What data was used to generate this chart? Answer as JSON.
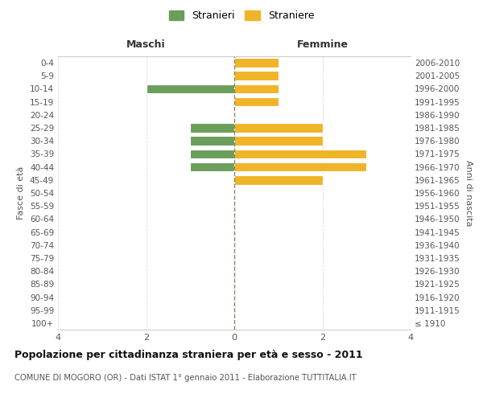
{
  "age_groups": [
    "100+",
    "95-99",
    "90-94",
    "85-89",
    "80-84",
    "75-79",
    "70-74",
    "65-69",
    "60-64",
    "55-59",
    "50-54",
    "45-49",
    "40-44",
    "35-39",
    "30-34",
    "25-29",
    "20-24",
    "15-19",
    "10-14",
    "5-9",
    "0-4"
  ],
  "birth_years": [
    "≤ 1910",
    "1911-1915",
    "1916-1920",
    "1921-1925",
    "1926-1930",
    "1931-1935",
    "1936-1940",
    "1941-1945",
    "1946-1950",
    "1951-1955",
    "1956-1960",
    "1961-1965",
    "1966-1970",
    "1971-1975",
    "1976-1980",
    "1981-1985",
    "1986-1990",
    "1991-1995",
    "1996-2000",
    "2001-2005",
    "2006-2010"
  ],
  "maschi": [
    0,
    0,
    0,
    0,
    0,
    0,
    0,
    0,
    0,
    0,
    0,
    0,
    1,
    1,
    1,
    1,
    0,
    0,
    2,
    0,
    0
  ],
  "femmine": [
    0,
    0,
    0,
    0,
    0,
    0,
    0,
    0,
    0,
    0,
    0,
    2,
    3,
    3,
    2,
    2,
    0,
    1,
    1,
    1,
    1
  ],
  "maschi_color": "#6a9e5a",
  "femmine_color": "#f0b429",
  "title": "Popolazione per cittadinanza straniera per età e sesso - 2011",
  "subtitle": "COMUNE DI MOGORO (OR) - Dati ISTAT 1° gennaio 2011 - Elaborazione TUTTITALIA.IT",
  "legend_maschi": "Stranieri",
  "legend_femmine": "Straniere",
  "label_left": "Maschi",
  "label_right": "Femmine",
  "ylabel_left": "Fasce di età",
  "ylabel_right": "Anni di nascita",
  "xlim": 4,
  "background_color": "#ffffff",
  "grid_color": "#cccccc",
  "center_line_color": "#888866"
}
